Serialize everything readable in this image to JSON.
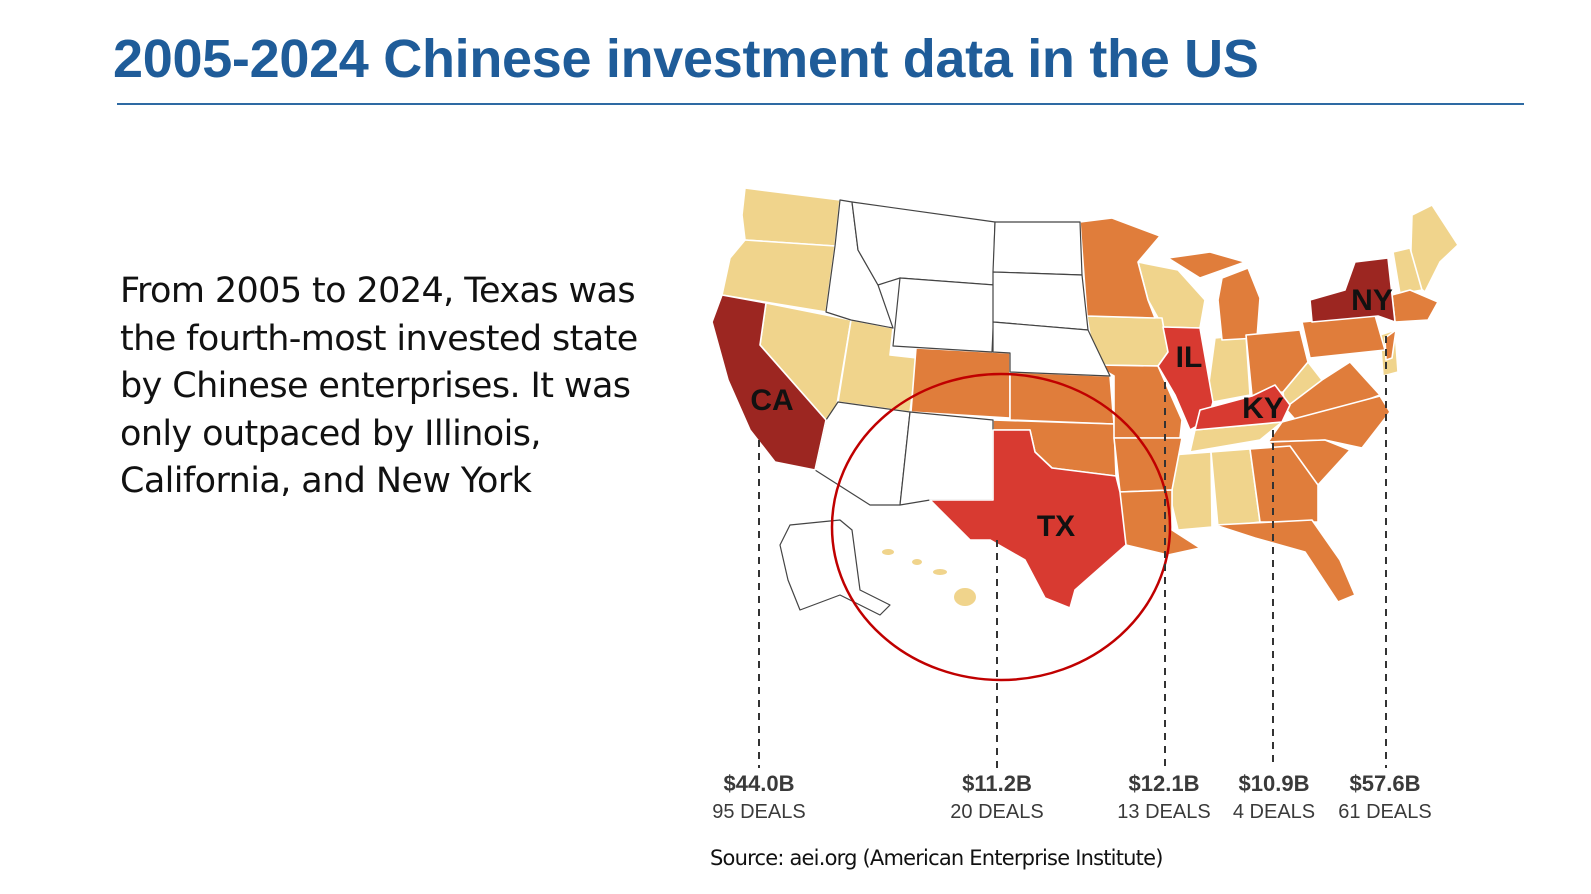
{
  "title": "2005-2024 Chinese investment data in the US",
  "body_text": "From 2005 to 2024, Texas was the fourth-most invested state by Chinese enterprises. It was only outpaced by Illinois, California, and New York",
  "source": "Source: aei.org (American Enterprise Institute)",
  "colors": {
    "title": "#1f5c99",
    "highest": "#9c2621",
    "high": "#d83a31",
    "medium": "#e07d3b",
    "low": "#f0d48c",
    "none": "#ffffff",
    "circle": "#c00000"
  },
  "highlighted_states": [
    {
      "abbr": "CA",
      "amount": "$44.0B",
      "deals": "95 DEALS"
    },
    {
      "abbr": "TX",
      "amount": "$11.2B",
      "deals": "20 DEALS"
    },
    {
      "abbr": "IL",
      "amount": "$12.1B",
      "deals": "13 DEALS"
    },
    {
      "abbr": "KY",
      "amount": "$10.9B",
      "deals": "4 DEALS"
    },
    {
      "abbr": "NY",
      "amount": "$57.6B",
      "deals": "61 DEALS"
    }
  ]
}
